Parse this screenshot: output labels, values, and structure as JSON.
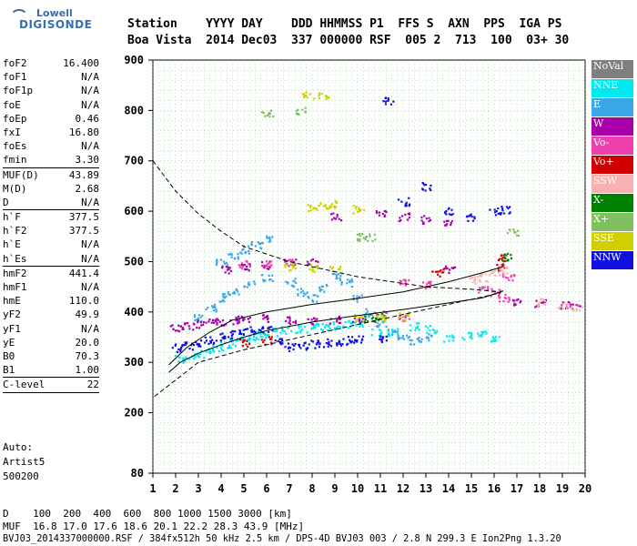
{
  "logo": {
    "line1": "Lowell",
    "line2": "DIGISONDE"
  },
  "header": {
    "line1": "Station    YYYY DAY    DDD HHMMSS P1  FFS S  AXN  PPS  IGA PS",
    "line2": "Boa Vista  2014 Dec03  337 000000 RSF  005 2  713  100  03+ 30"
  },
  "params": [
    {
      "k": "foF2",
      "v": "16.400",
      "sep": false
    },
    {
      "k": "foF1",
      "v": "N/A",
      "sep": false
    },
    {
      "k": "foF1p",
      "v": "N/A",
      "sep": false
    },
    {
      "k": "foE",
      "v": "N/A",
      "sep": false
    },
    {
      "k": "foEp",
      "v": "0.46",
      "sep": false
    },
    {
      "k": "fxI",
      "v": "16.80",
      "sep": false
    },
    {
      "k": "foEs",
      "v": "N/A",
      "sep": false
    },
    {
      "k": "fmin",
      "v": "3.30",
      "sep": false
    },
    {
      "k": "MUF(D)",
      "v": "43.89",
      "sep": true
    },
    {
      "k": "M(D)",
      "v": "2.68",
      "sep": false
    },
    {
      "k": "D",
      "v": "N/A",
      "sep": false
    },
    {
      "k": "h`F",
      "v": "377.5",
      "sep": true
    },
    {
      "k": "h`F2",
      "v": "377.5",
      "sep": false
    },
    {
      "k": "h`E",
      "v": "N/A",
      "sep": false
    },
    {
      "k": "h`Es",
      "v": "N/A",
      "sep": false
    },
    {
      "k": "hmF2",
      "v": "441.4",
      "sep": true
    },
    {
      "k": "hmF1",
      "v": "N/A",
      "sep": false
    },
    {
      "k": "hmE",
      "v": "110.0",
      "sep": false
    },
    {
      "k": "yF2",
      "v": "49.9",
      "sep": false
    },
    {
      "k": "yF1",
      "v": "N/A",
      "sep": false
    },
    {
      "k": "yE",
      "v": "20.0",
      "sep": false
    },
    {
      "k": "B0",
      "v": "70.3",
      "sep": false
    },
    {
      "k": "B1",
      "v": "1.00",
      "sep": false
    },
    {
      "k": "C-level",
      "v": "22",
      "sep": true
    }
  ],
  "auto": {
    "l1": "Auto:",
    "l2": "Artist5",
    "l3": "500200"
  },
  "footer": {
    "d_row": "D    100  200  400  600  800 1000 1500 3000 [km]",
    "muf_row": "MUF  16.8 17.0 17.6 18.6 20.1 22.2 28.3 43.9 [MHz]",
    "file_row": "BVJ03_2014337000000.RSF / 384fx512h 50 kHz 2.5 km / DPS-4D BVJ03 003 / 2.8 N 299.3 E Ion2Png 1.3.20"
  },
  "legend": [
    {
      "label": "NoVal",
      "color": "#7f7f7f"
    },
    {
      "label": "NNE",
      "color": "#00e8f0"
    },
    {
      "label": "E",
      "color": "#3aa8e8"
    },
    {
      "label": "W",
      "color": "#a800a8"
    },
    {
      "label": "Vo-",
      "color": "#f040b0"
    },
    {
      "label": "Vo+",
      "color": "#d00000"
    },
    {
      "label": "SSW",
      "color": "#f8b0b0"
    },
    {
      "label": "X-",
      "color": "#008000"
    },
    {
      "label": "X+",
      "color": "#80c060"
    },
    {
      "label": "SSE",
      "color": "#d0d000"
    },
    {
      "label": "NNW",
      "color": "#1010e0"
    }
  ],
  "chart_data": {
    "type": "scatter",
    "xlim": [
      1,
      20
    ],
    "ylim": [
      80,
      900
    ],
    "x_ticks": [
      1,
      2,
      3,
      4,
      5,
      6,
      7,
      8,
      9,
      10,
      11,
      12,
      13,
      14,
      15,
      16,
      17,
      18,
      19,
      20
    ],
    "y_ticks": [
      80,
      200,
      300,
      400,
      500,
      600,
      700,
      800,
      900
    ],
    "grid": true,
    "legend_position": "right",
    "profile_solid": [
      [
        1.7,
        295
      ],
      [
        2.5,
        330
      ],
      [
        3.5,
        360
      ],
      [
        4.5,
        384
      ],
      [
        6,
        400
      ],
      [
        8,
        415
      ],
      [
        10,
        427
      ],
      [
        12,
        440
      ],
      [
        14,
        460
      ],
      [
        15.5,
        478
      ],
      [
        16.4,
        490
      ]
    ],
    "profile_dashed": [
      [
        1,
        700
      ],
      [
        2,
        640
      ],
      [
        3,
        595
      ],
      [
        4,
        560
      ],
      [
        5,
        530
      ],
      [
        7,
        500
      ],
      [
        10,
        470
      ],
      [
        13,
        450
      ],
      [
        15,
        445
      ],
      [
        16,
        441
      ],
      [
        16.3,
        438
      ],
      [
        14,
        415
      ],
      [
        11,
        385
      ],
      [
        8,
        355
      ],
      [
        5,
        325
      ],
      [
        3,
        300
      ],
      [
        1,
        230
      ]
    ],
    "lower_profile": [
      [
        1.7,
        280
      ],
      [
        2.2,
        300
      ],
      [
        3,
        318
      ],
      [
        4,
        335
      ],
      [
        5,
        350
      ],
      [
        6,
        363
      ],
      [
        8,
        380
      ],
      [
        10,
        393
      ],
      [
        12,
        405
      ],
      [
        14,
        418
      ],
      [
        15.5,
        428
      ],
      [
        16.4,
        442
      ]
    ],
    "series": [
      {
        "name": "NNE",
        "color": "#00e8f0",
        "points": [
          [
            2.2,
            308
          ],
          [
            2.6,
            312
          ],
          [
            3,
            318
          ],
          [
            3.4,
            325
          ],
          [
            3.8,
            330
          ],
          [
            4.2,
            335
          ],
          [
            4.6,
            342
          ],
          [
            5,
            348
          ],
          [
            5.4,
            352
          ],
          [
            5.8,
            358
          ],
          [
            6.2,
            362
          ],
          [
            6.8,
            365
          ],
          [
            7.5,
            368
          ],
          [
            8,
            370
          ],
          [
            8.5,
            372
          ],
          [
            9,
            375
          ],
          [
            9.5,
            378
          ],
          [
            10,
            380
          ],
          [
            10.8,
            360
          ],
          [
            11.5,
            362
          ],
          [
            12.5,
            372
          ],
          [
            13.2,
            368
          ],
          [
            14,
            348
          ],
          [
            14.8,
            355
          ],
          [
            15.4,
            358
          ],
          [
            16,
            350
          ]
        ]
      },
      {
        "name": "E",
        "color": "#3aa8e8",
        "points": [
          [
            3,
            390
          ],
          [
            3.5,
            410
          ],
          [
            4,
            430
          ],
          [
            4.5,
            440
          ],
          [
            5.2,
            455
          ],
          [
            6,
            470
          ],
          [
            7,
            460
          ],
          [
            7.5,
            440
          ],
          [
            8,
            430
          ],
          [
            8.5,
            450
          ],
          [
            9,
            470
          ],
          [
            9.5,
            460
          ],
          [
            10,
            430
          ],
          [
            10.5,
            400
          ],
          [
            11,
            380
          ],
          [
            11.5,
            360
          ],
          [
            12,
            350
          ],
          [
            12.5,
            345
          ],
          [
            13,
            350
          ],
          [
            4,
            500
          ],
          [
            4.5,
            515
          ],
          [
            5,
            525
          ],
          [
            5.5,
            535
          ],
          [
            6,
            545
          ]
        ]
      },
      {
        "name": "W",
        "color": "#a800a8",
        "points": [
          [
            2,
            370
          ],
          [
            2.5,
            372
          ],
          [
            3,
            378
          ],
          [
            3.5,
            380
          ],
          [
            4,
            382
          ],
          [
            4.5,
            385
          ],
          [
            5,
            388
          ],
          [
            6,
            390
          ],
          [
            7,
            385
          ],
          [
            8,
            382
          ],
          [
            9,
            385
          ],
          [
            10,
            388
          ],
          [
            4.2,
            485
          ],
          [
            5,
            490
          ],
          [
            6,
            495
          ],
          [
            7,
            498
          ],
          [
            8,
            500
          ],
          [
            9,
            590
          ],
          [
            11,
            595
          ],
          [
            12,
            590
          ],
          [
            13,
            585
          ],
          [
            14,
            580
          ],
          [
            17,
            420
          ],
          [
            18,
            418
          ],
          [
            19,
            415
          ],
          [
            19.5,
            416
          ],
          [
            14,
            485
          ]
        ]
      },
      {
        "name": "Vo-",
        "color": "#f040b0",
        "points": [
          [
            5,
            495
          ],
          [
            6,
            497
          ],
          [
            7,
            498
          ],
          [
            12,
            460
          ],
          [
            13,
            455
          ],
          [
            15.5,
            445
          ],
          [
            16,
            440
          ],
          [
            16.4,
            430
          ],
          [
            16.6,
            470
          ],
          [
            11,
            395
          ],
          [
            12,
            390
          ]
        ]
      },
      {
        "name": "Vo+",
        "color": "#d00000",
        "points": [
          [
            5,
            340
          ],
          [
            6,
            345
          ],
          [
            16.4,
            510
          ],
          [
            16.2,
            490
          ],
          [
            13.5,
            480
          ]
        ]
      },
      {
        "name": "SSW",
        "color": "#f8b0b0",
        "points": [
          [
            15,
            465
          ],
          [
            15.5,
            470
          ],
          [
            16,
            480
          ],
          [
            16.4,
            485
          ],
          [
            18,
            420
          ],
          [
            19,
            415
          ],
          [
            19.6,
            412
          ]
        ]
      },
      {
        "name": "X-",
        "color": "#008000",
        "points": [
          [
            16.5,
            510
          ],
          [
            10.5,
            390
          ],
          [
            11,
            392
          ]
        ]
      },
      {
        "name": "X+",
        "color": "#80c060",
        "points": [
          [
            16.8,
            560
          ],
          [
            10,
            550
          ],
          [
            10.5,
            548
          ],
          [
            7.5,
            800
          ],
          [
            6,
            795
          ]
        ]
      },
      {
        "name": "SSE",
        "color": "#d0d000",
        "points": [
          [
            8,
            610
          ],
          [
            8.5,
            612
          ],
          [
            9,
            615
          ],
          [
            10,
            605
          ],
          [
            8.5,
            830
          ],
          [
            7.8,
            830
          ],
          [
            10,
            390
          ],
          [
            11,
            388
          ],
          [
            12,
            392
          ],
          [
            7,
            490
          ],
          [
            8,
            488
          ],
          [
            9,
            485
          ]
        ]
      },
      {
        "name": "NNW",
        "color": "#1010e0",
        "points": [
          [
            2,
            330
          ],
          [
            2.5,
            335
          ],
          [
            3,
            340
          ],
          [
            3.5,
            345
          ],
          [
            4,
            352
          ],
          [
            4.5,
            356
          ],
          [
            5,
            362
          ],
          [
            5.5,
            365
          ],
          [
            6,
            368
          ],
          [
            6.5,
            345
          ],
          [
            7,
            332
          ],
          [
            7.5,
            335
          ],
          [
            8,
            338
          ],
          [
            8.5,
            340
          ],
          [
            9,
            342
          ],
          [
            9.5,
            345
          ],
          [
            10,
            348
          ],
          [
            11,
            350
          ],
          [
            11.3,
            820
          ],
          [
            12,
            620
          ],
          [
            13,
            650
          ],
          [
            14,
            600
          ],
          [
            15,
            590
          ],
          [
            16,
            600
          ],
          [
            16.5,
            605
          ]
        ]
      }
    ]
  }
}
